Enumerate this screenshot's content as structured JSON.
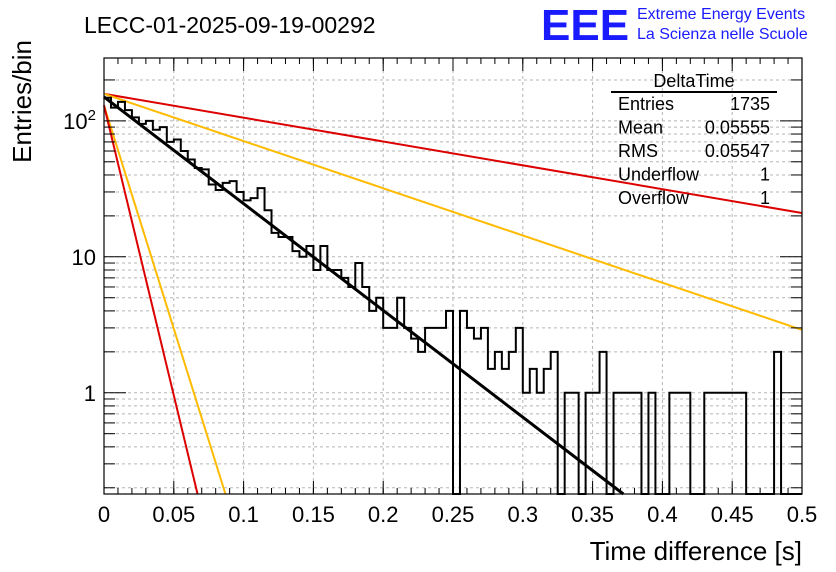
{
  "title": "LECC-01-2025-09-19-00292",
  "logo": {
    "mark": "EEE",
    "line1": "Extreme Energy Events",
    "line2": "La Scienza nelle Scuole",
    "color": "#1a1aff"
  },
  "stats_box": {
    "title": "DeltaTime",
    "rows": [
      {
        "label": "Entries",
        "value": "1735"
      },
      {
        "label": "Mean",
        "value": "0.05555"
      },
      {
        "label": "RMS",
        "value": "0.05547"
      },
      {
        "label": "Underflow",
        "value": "1"
      },
      {
        "label": "Overflow",
        "value": "1"
      }
    ]
  },
  "chart_data": {
    "type": "histogram",
    "xlabel": "Time difference [s]",
    "ylabel": "Entries/bin",
    "xlim": [
      0,
      0.5
    ],
    "ylim": [
      0.18,
      290
    ],
    "y_scale": "log",
    "grid": true,
    "x_ticks": [
      "0",
      "0.05",
      "0.1",
      "0.15",
      "0.2",
      "0.25",
      "0.3",
      "0.35",
      "0.4",
      "0.45",
      "0.5"
    ],
    "y_tick_labels": [
      {
        "value": 1,
        "label": "1"
      },
      {
        "value": 10,
        "label": "10"
      },
      {
        "value": 100,
        "label": "10^2"
      }
    ],
    "bin_width": 0.005,
    "bin_counts": [
      148,
      125,
      138,
      120,
      106,
      95,
      100,
      86,
      90,
      70,
      73,
      60,
      52,
      45,
      44,
      34,
      31,
      35,
      36,
      30,
      26,
      27,
      32,
      22,
      15,
      14,
      14,
      11,
      10,
      12,
      8,
      12,
      8,
      8,
      7,
      6,
      9,
      6,
      4,
      5,
      3,
      3,
      5,
      3,
      2.5,
      2,
      3,
      3,
      3,
      4,
      0,
      4,
      3,
      2.5,
      3,
      1.5,
      2,
      1.5,
      2,
      3,
      1,
      1.5,
      1,
      1.5,
      2,
      0,
      1,
      1,
      0,
      1,
      1,
      2,
      0,
      1,
      1,
      1,
      1,
      0,
      1,
      0,
      0,
      1,
      1,
      1,
      0,
      0,
      1,
      1,
      1,
      1,
      1,
      1,
      0,
      0,
      0,
      0,
      2,
      0,
      0,
      0
    ],
    "histogram_color": "#000000",
    "fit_lines": [
      {
        "color": "#000000",
        "x_start": 0,
        "y_start": 150,
        "x_end": 0.372,
        "y_end": 0.18
      },
      {
        "color": "#dd0000",
        "x_start": 0,
        "y_start": 158,
        "x_end": 0.5,
        "y_end": 21
      },
      {
        "color": "#ffbb00",
        "x_start": 0,
        "y_start": 158,
        "x_end": 0.5,
        "y_end": 2.9
      },
      {
        "color": "#ffbb00",
        "x_start": 0,
        "y_start": 130,
        "x_end": 0.087,
        "y_end": 0.18
      },
      {
        "color": "#dd0000",
        "x_start": 0,
        "y_start": 130,
        "x_end": 0.067,
        "y_end": 0.18
      }
    ]
  }
}
